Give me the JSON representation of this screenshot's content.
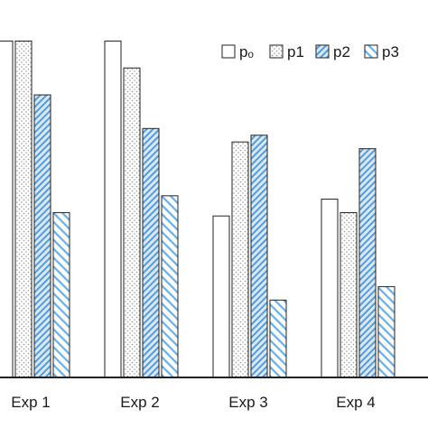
{
  "chart_data": {
    "type": "bar",
    "categories": [
      "Exp 1",
      "Exp 2",
      "Exp 3",
      "Exp 4"
    ],
    "series": [
      {
        "name": "pₒ",
        "values": [
          100,
          100,
          48,
          53
        ]
      },
      {
        "name": "p1",
        "values": [
          100,
          92,
          70,
          49
        ]
      },
      {
        "name": "p2",
        "values": [
          84,
          74,
          72,
          68
        ]
      },
      {
        "name": "p3",
        "values": [
          49,
          54,
          23,
          27
        ]
      }
    ],
    "ylim": [
      0,
      102
    ],
    "legend": "top-right",
    "grid": false
  },
  "styles": {
    "bar_stroke": "#222222",
    "axis_color": "#222222",
    "fills": {
      "pₒ": "plain-white",
      "p1": "dotted-light-gray",
      "p2": "dense-diagonal-blue",
      "p3": "sparse-diagonal-blue"
    },
    "pattern_colors": {
      "dots": "#9a9a9a",
      "p2_base": "#d6e9f4",
      "p2_stripe": "#5b9bd5",
      "p3_stripe": "#6aaee3"
    }
  }
}
